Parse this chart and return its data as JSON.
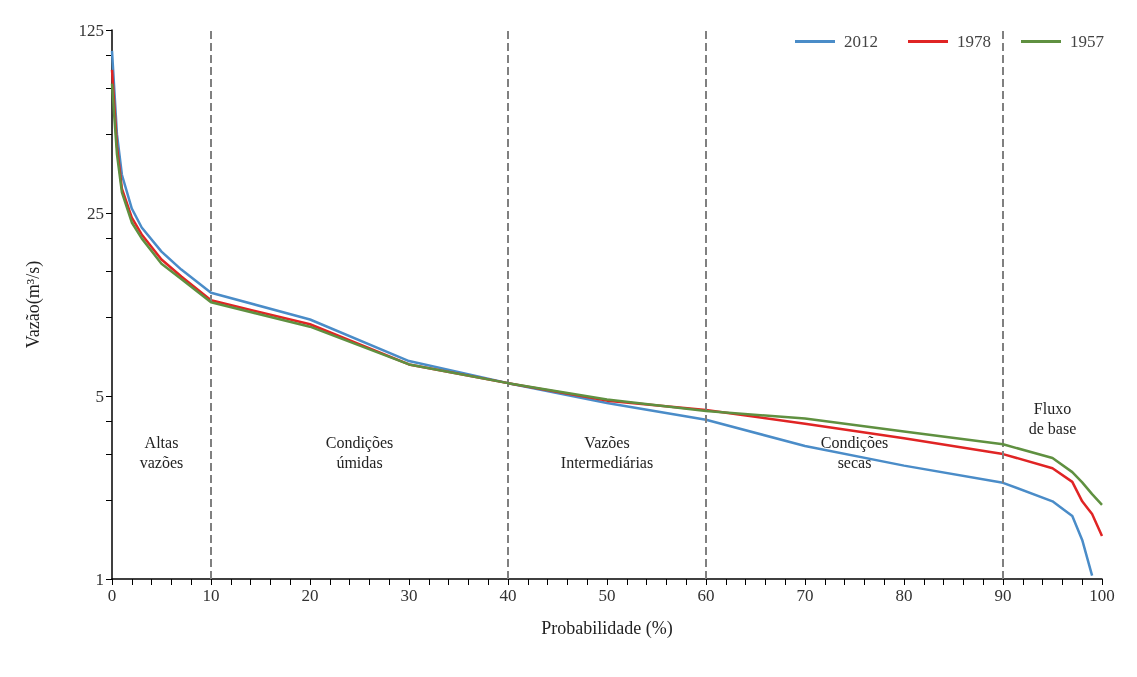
{
  "chart_data": {
    "type": "line",
    "xlabel": "Probabilidade (%)",
    "ylabel": "Vazão(m³/s)",
    "log": "y",
    "legend": "top right",
    "grid": false,
    "marker": "none",
    "line_style": "solid",
    "xlim": [
      0,
      100
    ],
    "ylim": [
      1,
      125
    ],
    "xticks": [
      0,
      {
        "value": 2,
        "label": null
      },
      {
        "value": 4,
        "label": null
      },
      {
        "value": 6,
        "label": null
      },
      {
        "value": 8,
        "label": null
      },
      10,
      {
        "value": 12,
        "label": null
      },
      {
        "value": 14,
        "label": null
      },
      {
        "value": 16,
        "label": null
      },
      {
        "value": 18,
        "label": null
      },
      20,
      {
        "value": 22,
        "label": null
      },
      {
        "value": 24,
        "label": null
      },
      {
        "value": 26,
        "label": null
      },
      {
        "value": 28,
        "label": null
      },
      30,
      {
        "value": 32,
        "label": null
      },
      {
        "value": 34,
        "label": null
      },
      {
        "value": 36,
        "label": null
      },
      {
        "value": 38,
        "label": null
      },
      40,
      {
        "value": 42,
        "label": null
      },
      {
        "value": 44,
        "label": null
      },
      {
        "value": 46,
        "label": null
      },
      {
        "value": 48,
        "label": null
      },
      50,
      {
        "value": 52,
        "label": null
      },
      {
        "value": 54,
        "label": null
      },
      {
        "value": 56,
        "label": null
      },
      {
        "value": 58,
        "label": null
      },
      60,
      {
        "value": 62,
        "label": null
      },
      {
        "value": 64,
        "label": null
      },
      {
        "value": 66,
        "label": null
      },
      {
        "value": 68,
        "label": null
      },
      70,
      {
        "value": 72,
        "label": null
      },
      {
        "value": 74,
        "label": null
      },
      {
        "value": 76,
        "label": null
      },
      {
        "value": 78,
        "label": null
      },
      80,
      {
        "value": 82,
        "label": null
      },
      {
        "value": 84,
        "label": null
      },
      {
        "value": 86,
        "label": null
      },
      {
        "value": 88,
        "label": null
      },
      90,
      {
        "value": 92,
        "label": null
      },
      {
        "value": 94,
        "label": null
      },
      {
        "value": 96,
        "label": null
      },
      {
        "value": 98,
        "label": null
      },
      100
    ],
    "yticks": [
      1,
      {
        "value": 2,
        "label": null
      },
      {
        "value": 3,
        "label": null
      },
      {
        "value": 4,
        "label": null
      },
      5,
      {
        "value": 10,
        "label": null
      },
      {
        "value": 15,
        "label": null
      },
      {
        "value": 20,
        "label": null
      },
      25,
      {
        "value": 50,
        "label": null
      },
      {
        "value": 75,
        "label": null
      },
      {
        "value": 100,
        "label": null
      },
      125
    ],
    "series": [
      {
        "name": "2012",
        "color": "#4a8cc8",
        "x": [
          0,
          0.5,
          1,
          2,
          3,
          5,
          7,
          10,
          20,
          30,
          40,
          50,
          60,
          70,
          80,
          90,
          95,
          97,
          98,
          99
        ],
        "values": [
          104,
          50,
          35,
          26,
          22,
          17.8,
          15.2,
          12.4,
          9.8,
          6.8,
          5.6,
          4.7,
          4.06,
          3.22,
          2.71,
          2.33,
          1.98,
          1.74,
          1.41,
          1.03
        ]
      },
      {
        "name": "1978",
        "color": "#e02424",
        "x": [
          0,
          0.5,
          1,
          2,
          3,
          5,
          7,
          10,
          20,
          30,
          40,
          50,
          60,
          70,
          80,
          90,
          95,
          97,
          98,
          99,
          100
        ],
        "values": [
          88,
          45,
          31,
          24,
          20.7,
          16.6,
          14.3,
          11.6,
          9.4,
          6.6,
          5.6,
          4.8,
          4.42,
          3.92,
          3.45,
          3.0,
          2.65,
          2.35,
          1.98,
          1.77,
          1.46
        ]
      },
      {
        "name": "1957",
        "color": "#5f9040",
        "x": [
          0,
          0.5,
          1,
          2,
          3,
          5,
          7,
          10,
          20,
          30,
          40,
          50,
          60,
          70,
          80,
          90,
          95,
          97,
          98,
          99,
          100
        ],
        "values": [
          78,
          42,
          30,
          23,
          20,
          16,
          14,
          11.4,
          9.2,
          6.6,
          5.6,
          4.85,
          4.38,
          4.1,
          3.66,
          3.27,
          2.9,
          2.56,
          2.34,
          2.11,
          1.92
        ]
      }
    ],
    "ref_lines": [
      {
        "axis": "x",
        "value": 10,
        "color": "#808080",
        "line_style": "dashed"
      },
      {
        "axis": "x",
        "value": 40,
        "color": "#808080",
        "line_style": "dashed"
      },
      {
        "axis": "x",
        "value": 60,
        "color": "#808080",
        "line_style": "dashed"
      },
      {
        "axis": "x",
        "value": 90,
        "color": "#808080",
        "line_style": "dashed"
      }
    ],
    "annotations": [
      "Altas\nvazões",
      "Condições\númidas",
      "Vazões\nIntermediárias",
      "Condições\nsecas",
      "Fluxo\nde base"
    ]
  }
}
